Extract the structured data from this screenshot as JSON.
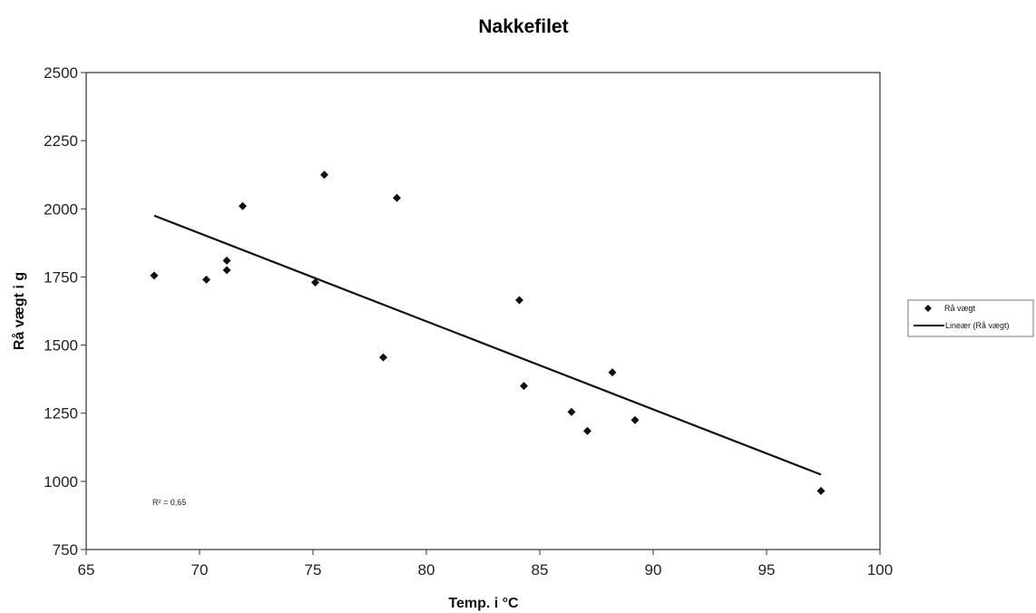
{
  "chart_data": {
    "type": "scatter",
    "title": "Nakkefilet",
    "xlabel": "Temp. i °C",
    "ylabel": "Rå vægt i g",
    "xlim": [
      65,
      100
    ],
    "ylim": [
      750,
      2500
    ],
    "xticks": [
      65,
      70,
      75,
      80,
      85,
      90,
      95,
      100
    ],
    "yticks": [
      750,
      1000,
      1250,
      1500,
      1750,
      2000,
      2250,
      2500
    ],
    "grid": false,
    "legend_position": "right",
    "annotation": "R² = 0,65",
    "series": [
      {
        "name": "Rå vægt",
        "marker": "diamond",
        "color": "#111111",
        "points": [
          {
            "x": 68.0,
            "y": 1755
          },
          {
            "x": 70.3,
            "y": 1740
          },
          {
            "x": 71.2,
            "y": 1810
          },
          {
            "x": 71.2,
            "y": 1775
          },
          {
            "x": 71.9,
            "y": 2010
          },
          {
            "x": 75.1,
            "y": 1730
          },
          {
            "x": 75.5,
            "y": 2125
          },
          {
            "x": 78.1,
            "y": 1455
          },
          {
            "x": 78.7,
            "y": 2040
          },
          {
            "x": 84.1,
            "y": 1665
          },
          {
            "x": 84.3,
            "y": 1350
          },
          {
            "x": 86.4,
            "y": 1255
          },
          {
            "x": 87.1,
            "y": 1185
          },
          {
            "x": 88.2,
            "y": 1400
          },
          {
            "x": 89.2,
            "y": 1225
          },
          {
            "x": 97.4,
            "y": 965
          }
        ]
      },
      {
        "name": "Lineær (Rå vægt)",
        "type": "line",
        "color": "#111111",
        "points": [
          {
            "x": 68.0,
            "y": 1975
          },
          {
            "x": 97.4,
            "y": 1025
          }
        ]
      }
    ]
  }
}
